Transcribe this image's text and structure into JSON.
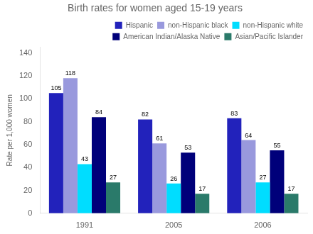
{
  "chart_data": {
    "type": "bar",
    "title": "Birth rates for women aged 15-19 years",
    "ylabel": "Rate per 1,000 women",
    "categories": [
      "1991",
      "2005",
      "2006"
    ],
    "series": [
      {
        "name": "Hispanic",
        "color": "#2222bb",
        "values": [
          105,
          82,
          83
        ]
      },
      {
        "name": "non-Hispanic black",
        "color": "#9999dd",
        "values": [
          118,
          61,
          64
        ]
      },
      {
        "name": "non-Hispanic white",
        "color": "#00ddff",
        "values": [
          43,
          26,
          27
        ]
      },
      {
        "name": "American Indian/Alaska Native",
        "color": "#00007a",
        "values": [
          84,
          53,
          55
        ]
      },
      {
        "name": "Asian/Pacific Islander",
        "color": "#2a7a6a",
        "values": [
          27,
          17,
          17
        ]
      }
    ],
    "ylim": [
      0,
      145
    ],
    "yticks": [
      0,
      20,
      40,
      60,
      80,
      100,
      120,
      140
    ],
    "grid": false,
    "legend": "upper right",
    "data_labels": true
  }
}
